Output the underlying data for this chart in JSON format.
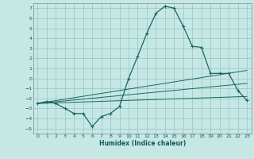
{
  "xlabel": "Humidex (Indice chaleur)",
  "background_color": "#c5e8e5",
  "grid_color": "#a0c8c5",
  "line_color": "#1a6660",
  "xlim": [
    -0.5,
    23.5
  ],
  "ylim": [
    -5.5,
    7.5
  ],
  "xticks": [
    0,
    1,
    2,
    3,
    4,
    5,
    6,
    7,
    8,
    9,
    10,
    11,
    12,
    13,
    14,
    15,
    16,
    17,
    18,
    19,
    20,
    21,
    22,
    23
  ],
  "yticks": [
    -5,
    -4,
    -3,
    -2,
    -1,
    0,
    1,
    2,
    3,
    4,
    5,
    6,
    7
  ],
  "main_line_x": [
    0,
    1,
    2,
    3,
    4,
    5,
    6,
    7,
    8,
    9,
    10,
    11,
    12,
    13,
    14,
    15,
    16,
    17,
    18,
    19,
    20,
    21,
    22,
    23
  ],
  "main_line_y": [
    -2.5,
    -2.3,
    -2.5,
    -3.0,
    -3.5,
    -3.5,
    -4.8,
    -3.8,
    -3.5,
    -2.8,
    0.0,
    2.2,
    4.5,
    6.5,
    7.2,
    7.0,
    5.2,
    3.2,
    3.1,
    0.5,
    0.5,
    0.5,
    -1.2,
    -2.2
  ],
  "line2_x": [
    0,
    23
  ],
  "line2_y": [
    -2.5,
    -1.8
  ],
  "line3_x": [
    0,
    23
  ],
  "line3_y": [
    -2.5,
    0.8
  ],
  "line4_x": [
    0,
    23
  ],
  "line4_y": [
    -2.5,
    -0.5
  ]
}
